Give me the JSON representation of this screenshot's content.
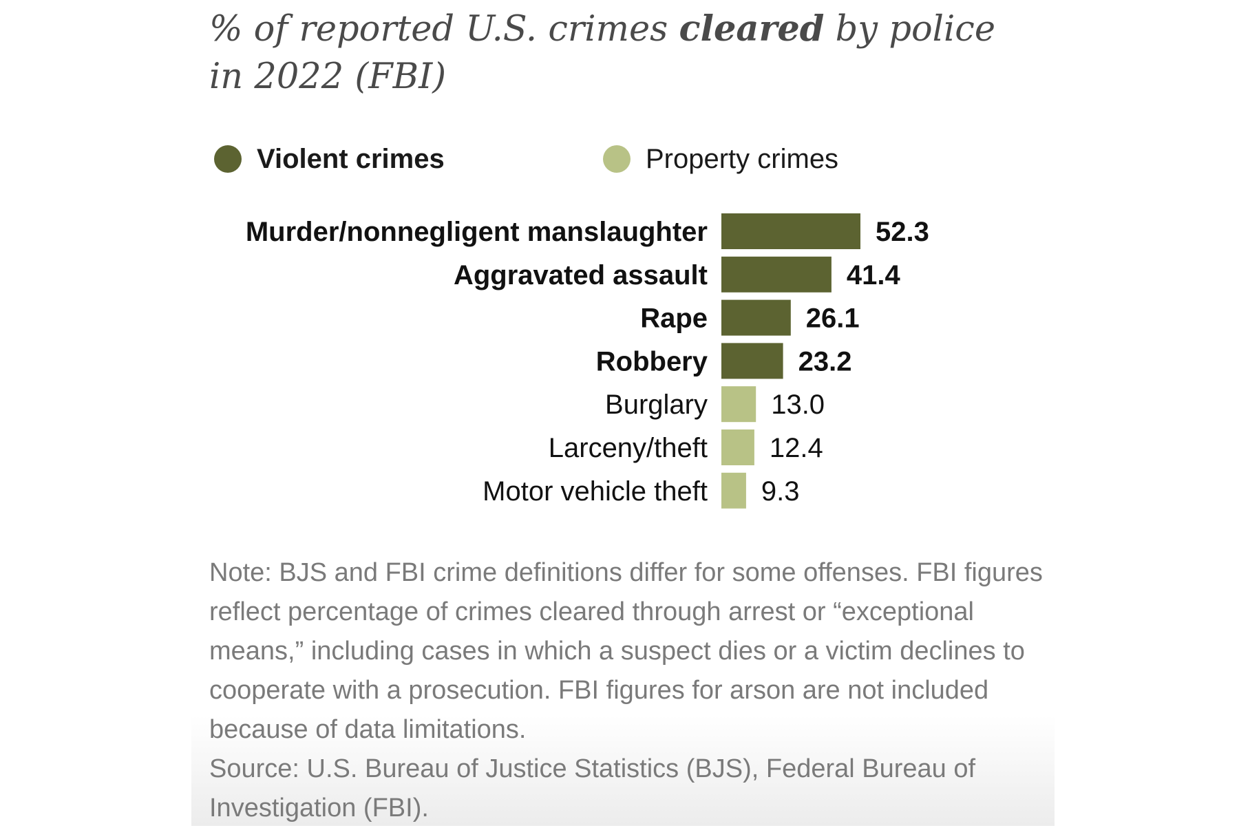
{
  "title": {
    "part1": "% of reported U.S. crimes ",
    "emphasis": "cleared",
    "part2": " by police",
    "line2": "in 2022 (FBI)"
  },
  "legend": {
    "violent": "Violent crimes",
    "property": "Property crimes"
  },
  "colors": {
    "violent": "#5c6331",
    "property": "#b8c286",
    "label_text": "#111111",
    "note_text": "#7a7a7a"
  },
  "chart_data": {
    "type": "bar",
    "orientation": "horizontal",
    "categories": [
      "Murder/nonnegligent manslaughter",
      "Aggravated assault",
      "Rape",
      "Robbery",
      "Burglary",
      "Larceny/theft",
      "Motor vehicle theft"
    ],
    "values": [
      52.3,
      41.4,
      26.1,
      23.2,
      13.0,
      12.4,
      9.3
    ],
    "value_labels": [
      "52.3",
      "41.4",
      "26.1",
      "23.2",
      "13.0",
      "12.4",
      "9.3"
    ],
    "groups": [
      "violent",
      "violent",
      "violent",
      "violent",
      "property",
      "property",
      "property"
    ],
    "xlim": [
      0,
      52.3
    ],
    "grid": false,
    "legend_position": "top"
  },
  "note": {
    "text": "Note: BJS and FBI crime definitions differ for some offenses. FBI figures reflect percentage of crimes cleared through arrest or “exceptional means,” including cases in which a suspect dies or a victim declines to cooperate with a prosecution. FBI figures for arson are not included because of data limitations.",
    "source": "Source: U.S. Bureau of Justice Statistics (BJS), Federal Bureau of Investigation (FBI)."
  }
}
